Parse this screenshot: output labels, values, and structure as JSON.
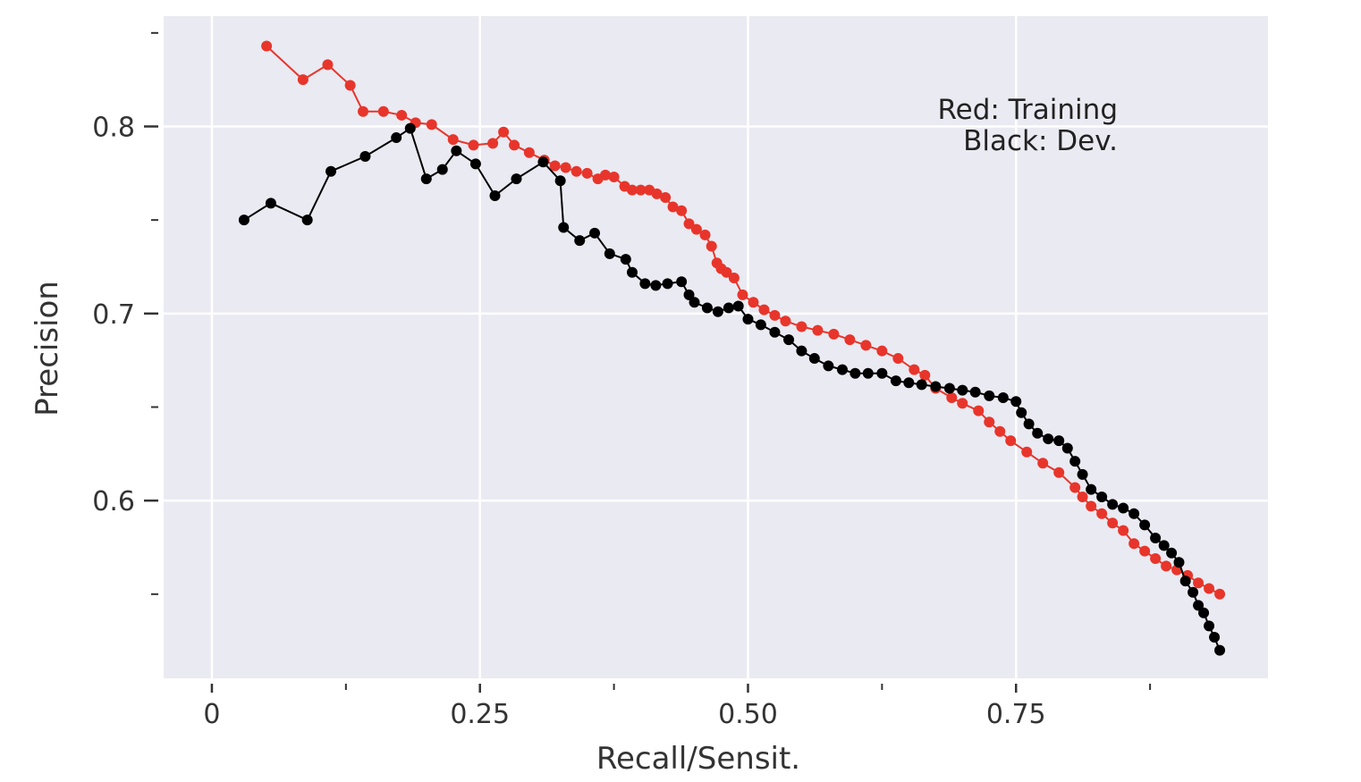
{
  "chart_data": {
    "type": "line",
    "xlabel": "Recall/Sensit.",
    "ylabel": "Precision",
    "xlim": [
      -0.045,
      0.985
    ],
    "ylim": [
      0.505,
      0.859
    ],
    "x_ticks": [
      0,
      0.25,
      0.5,
      0.75
    ],
    "x_tick_labels": [
      "0",
      "0.25",
      "0.50",
      "0.75"
    ],
    "x_minor_ticks": [
      0.125,
      0.375,
      0.625,
      0.875
    ],
    "y_ticks": [
      0.6,
      0.7,
      0.8
    ],
    "y_tick_labels": [
      "0.6",
      "0.7",
      "0.8"
    ],
    "y_minor_ticks": [
      0.55,
      0.65,
      0.75,
      0.85
    ],
    "grid": true,
    "annotation": [
      "Red: Training",
      "Black: Dev."
    ],
    "annotation_placement": "top-right",
    "series": [
      {
        "color": "#e8352b",
        "x": [
          0.051,
          0.085,
          0.108,
          0.129,
          0.141,
          0.16,
          0.177,
          0.19,
          0.205,
          0.225,
          0.244,
          0.262,
          0.272,
          0.282,
          0.296,
          0.31,
          0.32,
          0.33,
          0.34,
          0.35,
          0.36,
          0.367,
          0.375,
          0.385,
          0.392,
          0.4,
          0.408,
          0.415,
          0.423,
          0.43,
          0.438,
          0.445,
          0.452,
          0.46,
          0.466,
          0.471,
          0.475,
          0.48,
          0.487,
          0.495,
          0.505,
          0.515,
          0.525,
          0.535,
          0.55,
          0.565,
          0.58,
          0.595,
          0.61,
          0.625,
          0.64,
          0.655,
          0.665,
          0.675,
          0.69,
          0.7,
          0.715,
          0.725,
          0.735,
          0.745,
          0.76,
          0.775,
          0.79,
          0.805,
          0.812,
          0.82,
          0.83,
          0.84,
          0.85,
          0.86,
          0.87,
          0.88,
          0.89,
          0.9,
          0.91,
          0.92,
          0.93,
          0.94
        ],
        "y": [
          0.843,
          0.825,
          0.833,
          0.822,
          0.808,
          0.808,
          0.806,
          0.802,
          0.801,
          0.793,
          0.79,
          0.791,
          0.797,
          0.79,
          0.786,
          0.782,
          0.779,
          0.778,
          0.776,
          0.775,
          0.772,
          0.774,
          0.773,
          0.768,
          0.766,
          0.766,
          0.766,
          0.764,
          0.762,
          0.757,
          0.755,
          0.748,
          0.745,
          0.742,
          0.736,
          0.727,
          0.724,
          0.722,
          0.719,
          0.71,
          0.706,
          0.702,
          0.699,
          0.696,
          0.693,
          0.691,
          0.689,
          0.686,
          0.683,
          0.68,
          0.676,
          0.67,
          0.667,
          0.66,
          0.655,
          0.652,
          0.648,
          0.642,
          0.637,
          0.632,
          0.626,
          0.62,
          0.615,
          0.607,
          0.602,
          0.597,
          0.593,
          0.588,
          0.584,
          0.577,
          0.573,
          0.569,
          0.565,
          0.563,
          0.56,
          0.556,
          0.553,
          0.55
        ]
      },
      {
        "color": "#000000",
        "x": [
          0.03,
          0.055,
          0.089,
          0.111,
          0.143,
          0.172,
          0.185,
          0.2,
          0.215,
          0.228,
          0.246,
          0.264,
          0.284,
          0.309,
          0.325,
          0.328,
          0.343,
          0.357,
          0.371,
          0.386,
          0.392,
          0.404,
          0.414,
          0.425,
          0.438,
          0.445,
          0.45,
          0.462,
          0.472,
          0.482,
          0.491,
          0.5,
          0.512,
          0.525,
          0.538,
          0.55,
          0.562,
          0.575,
          0.588,
          0.6,
          0.612,
          0.625,
          0.638,
          0.65,
          0.662,
          0.675,
          0.688,
          0.7,
          0.712,
          0.725,
          0.738,
          0.75,
          0.755,
          0.762,
          0.77,
          0.78,
          0.79,
          0.798,
          0.805,
          0.812,
          0.82,
          0.83,
          0.84,
          0.85,
          0.86,
          0.87,
          0.88,
          0.888,
          0.895,
          0.902,
          0.908,
          0.915,
          0.92,
          0.925,
          0.93,
          0.935,
          0.94
        ],
        "y": [
          0.75,
          0.759,
          0.75,
          0.776,
          0.784,
          0.794,
          0.799,
          0.772,
          0.777,
          0.787,
          0.78,
          0.763,
          0.772,
          0.781,
          0.771,
          0.746,
          0.739,
          0.743,
          0.732,
          0.729,
          0.722,
          0.716,
          0.715,
          0.716,
          0.717,
          0.71,
          0.706,
          0.703,
          0.701,
          0.703,
          0.704,
          0.697,
          0.694,
          0.69,
          0.686,
          0.68,
          0.676,
          0.672,
          0.67,
          0.668,
          0.668,
          0.668,
          0.664,
          0.663,
          0.662,
          0.661,
          0.66,
          0.659,
          0.658,
          0.656,
          0.655,
          0.653,
          0.647,
          0.641,
          0.636,
          0.633,
          0.632,
          0.628,
          0.621,
          0.614,
          0.606,
          0.602,
          0.598,
          0.596,
          0.593,
          0.587,
          0.58,
          0.576,
          0.572,
          0.567,
          0.557,
          0.551,
          0.544,
          0.54,
          0.533,
          0.527,
          0.52
        ]
      }
    ]
  }
}
